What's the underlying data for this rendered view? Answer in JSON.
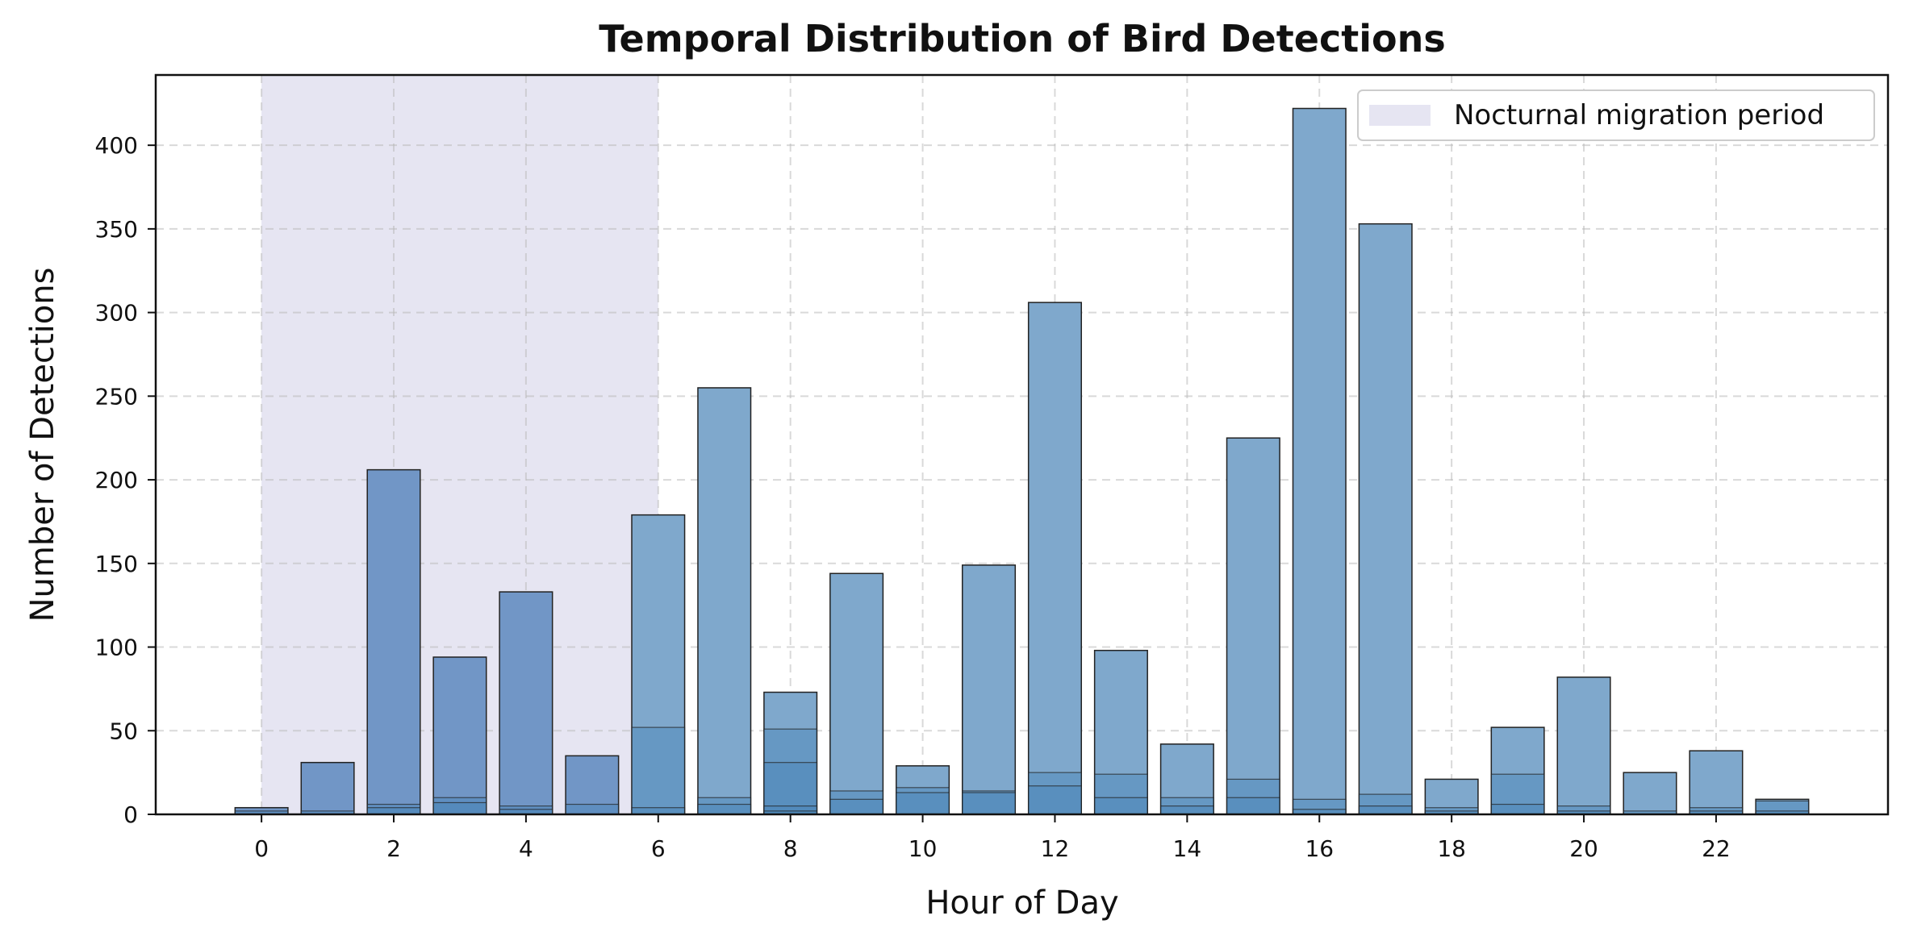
{
  "chart_data": {
    "type": "bar",
    "title": "Temporal Distribution of Bird Detections",
    "xlabel": "Hour of Day",
    "ylabel": "Number of Detections",
    "xlim": [
      -1.6,
      24.6
    ],
    "ylim": [
      0,
      442
    ],
    "xticks": [
      "0",
      "2",
      "4",
      "6",
      "8",
      "10",
      "12",
      "14",
      "16",
      "18",
      "20",
      "22"
    ],
    "xtick_values": [
      0,
      2,
      4,
      6,
      8,
      10,
      12,
      14,
      16,
      18,
      20,
      22
    ],
    "yticks": [
      "0",
      "50",
      "100",
      "150",
      "200",
      "250",
      "300",
      "350",
      "400"
    ],
    "ytick_values": [
      0,
      50,
      100,
      150,
      200,
      250,
      300,
      350,
      400
    ],
    "grid": true,
    "legend_position": "top-right",
    "shaded_region": {
      "label": "Nocturnal migration period",
      "x_start": 0,
      "x_end": 6,
      "color": "#e6e5f2"
    },
    "hours": [
      0,
      1,
      2,
      3,
      4,
      5,
      6,
      7,
      8,
      9,
      10,
      11,
      12,
      13,
      14,
      15,
      16,
      17,
      18,
      19,
      20,
      21,
      22,
      23
    ],
    "totals": [
      4,
      31,
      206,
      94,
      133,
      35,
      179,
      255,
      73,
      144,
      29,
      149,
      306,
      98,
      42,
      225,
      422,
      353,
      21,
      52,
      82,
      25,
      38,
      9
    ],
    "inner_segments": [
      [
        2
      ],
      [
        2
      ],
      [
        6,
        4
      ],
      [
        10,
        7
      ],
      [
        5,
        3
      ],
      [
        6
      ],
      [
        52,
        4
      ],
      [
        10,
        6
      ],
      [
        51,
        31,
        5,
        2
      ],
      [
        14,
        9
      ],
      [
        16,
        13
      ],
      [
        14,
        13
      ],
      [
        25,
        17
      ],
      [
        24,
        10
      ],
      [
        10,
        5
      ],
      [
        21,
        10
      ],
      [
        9,
        3
      ],
      [
        12,
        5
      ],
      [
        4,
        2
      ],
      [
        24,
        6
      ],
      [
        5,
        2
      ],
      [
        2
      ],
      [
        4,
        2
      ],
      [
        8,
        2
      ]
    ],
    "colors": {
      "night_bar": "#7196c6",
      "day_bar": "#7fa8cc",
      "inner_bar": "#4a86b8",
      "bar_edge": "#222222"
    }
  }
}
